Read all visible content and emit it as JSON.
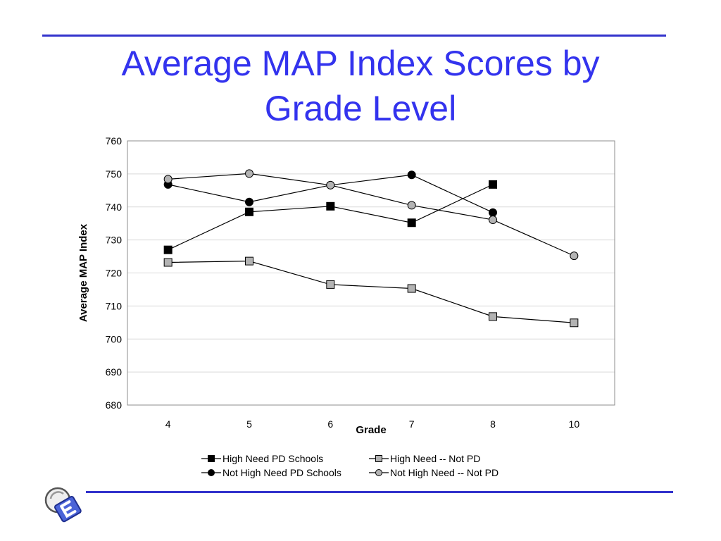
{
  "title": {
    "line1": "Average MAP Index Scores by",
    "line2": "Grade Level"
  },
  "colors": {
    "title": "#3333ee",
    "rule": "#3333cc",
    "series_black": "#000000",
    "series_gray": "#b3b3b3",
    "gridline": "#d9d9d9"
  },
  "chart_data": {
    "type": "line",
    "xlabel": "Grade",
    "ylabel": "Average MAP Index",
    "categories": [
      "4",
      "5",
      "6",
      "7",
      "8",
      "10"
    ],
    "ylim": [
      680,
      760
    ],
    "yticks": [
      680,
      690,
      700,
      710,
      720,
      730,
      740,
      750,
      760
    ],
    "grid": true,
    "legend_position": "bottom",
    "series": [
      {
        "name": "High Need PD Schools",
        "marker": "square",
        "fill": "#000000",
        "values": [
          727,
          738.5,
          740.2,
          735.2,
          746.8,
          null
        ]
      },
      {
        "name": "High Need -- Not PD",
        "marker": "square",
        "fill": "#b3b3b3",
        "values": [
          723.2,
          723.6,
          716.5,
          715.3,
          706.8,
          704.9
        ]
      },
      {
        "name": "Not High Need PD Schools",
        "marker": "circle",
        "fill": "#000000",
        "values": [
          746.8,
          741.5,
          746.6,
          749.7,
          738.3,
          null
        ]
      },
      {
        "name": "Not High Need -- Not PD",
        "marker": "circle",
        "fill": "#b3b3b3",
        "values": [
          748.4,
          750.1,
          746.6,
          740.5,
          736.1,
          725.2
        ]
      }
    ]
  }
}
